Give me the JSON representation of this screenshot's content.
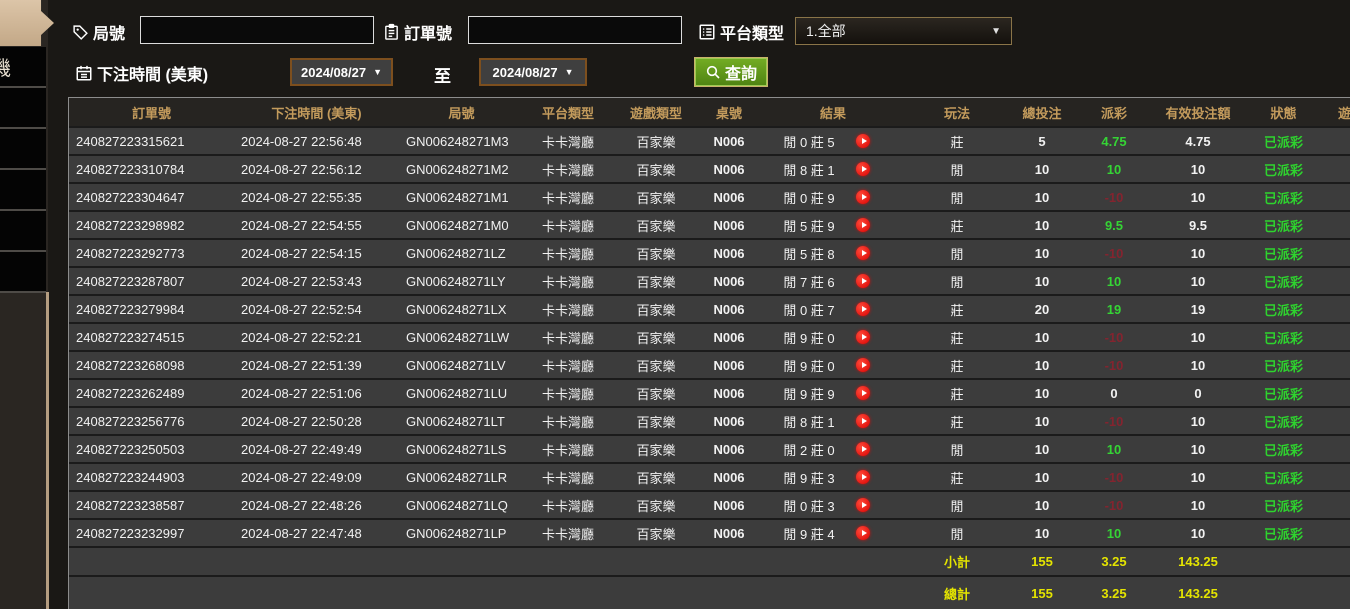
{
  "sidebar": {
    "items": [
      "機",
      "",
      "",
      "",
      "",
      ""
    ]
  },
  "filters": {
    "round_label": "局號",
    "round_value": "",
    "order_label": "訂單號",
    "order_value": "",
    "platform_label": "平台類型",
    "platform_value": "1.全部",
    "time_label": "下注時間 (美東)",
    "date_from": "2024/08/27",
    "to_label": "至",
    "date_to": "2024/08/27",
    "query_label": "查詢"
  },
  "table": {
    "headers": [
      "訂單號",
      "下注時間 (美東)",
      "局號",
      "平台類型",
      "遊戲類型",
      "桌號",
      "結果",
      "玩法",
      "總投注",
      "派彩",
      "有效投注額",
      "狀態",
      "遊戲"
    ],
    "rows": [
      {
        "order": "240827223315621",
        "time": "2024-08-27 22:56:48",
        "round": "GN006248271M3",
        "platform": "卡卡灣廳",
        "game": "百家樂",
        "table": "N006",
        "result": "閒 0 莊 5",
        "play": "莊",
        "bet": "5",
        "payout": "4.75",
        "valid": "4.75",
        "status": "已派彩"
      },
      {
        "order": "240827223310784",
        "time": "2024-08-27 22:56:12",
        "round": "GN006248271M2",
        "platform": "卡卡灣廳",
        "game": "百家樂",
        "table": "N006",
        "result": "閒 8 莊 1",
        "play": "閒",
        "bet": "10",
        "payout": "10",
        "valid": "10",
        "status": "已派彩"
      },
      {
        "order": "240827223304647",
        "time": "2024-08-27 22:55:35",
        "round": "GN006248271M1",
        "platform": "卡卡灣廳",
        "game": "百家樂",
        "table": "N006",
        "result": "閒 0 莊 9",
        "play": "閒",
        "bet": "10",
        "payout": "-10",
        "valid": "10",
        "status": "已派彩"
      },
      {
        "order": "240827223298982",
        "time": "2024-08-27 22:54:55",
        "round": "GN006248271M0",
        "platform": "卡卡灣廳",
        "game": "百家樂",
        "table": "N006",
        "result": "閒 5 莊 9",
        "play": "莊",
        "bet": "10",
        "payout": "9.5",
        "valid": "9.5",
        "status": "已派彩"
      },
      {
        "order": "240827223292773",
        "time": "2024-08-27 22:54:15",
        "round": "GN006248271LZ",
        "platform": "卡卡灣廳",
        "game": "百家樂",
        "table": "N006",
        "result": "閒 5 莊 8",
        "play": "閒",
        "bet": "10",
        "payout": "-10",
        "valid": "10",
        "status": "已派彩"
      },
      {
        "order": "240827223287807",
        "time": "2024-08-27 22:53:43",
        "round": "GN006248271LY",
        "platform": "卡卡灣廳",
        "game": "百家樂",
        "table": "N006",
        "result": "閒 7 莊 6",
        "play": "閒",
        "bet": "10",
        "payout": "10",
        "valid": "10",
        "status": "已派彩"
      },
      {
        "order": "240827223279984",
        "time": "2024-08-27 22:52:54",
        "round": "GN006248271LX",
        "platform": "卡卡灣廳",
        "game": "百家樂",
        "table": "N006",
        "result": "閒 0 莊 7",
        "play": "莊",
        "bet": "20",
        "payout": "19",
        "valid": "19",
        "status": "已派彩"
      },
      {
        "order": "240827223274515",
        "time": "2024-08-27 22:52:21",
        "round": "GN006248271LW",
        "platform": "卡卡灣廳",
        "game": "百家樂",
        "table": "N006",
        "result": "閒 9 莊 0",
        "play": "莊",
        "bet": "10",
        "payout": "-10",
        "valid": "10",
        "status": "已派彩"
      },
      {
        "order": "240827223268098",
        "time": "2024-08-27 22:51:39",
        "round": "GN006248271LV",
        "platform": "卡卡灣廳",
        "game": "百家樂",
        "table": "N006",
        "result": "閒 9 莊 0",
        "play": "莊",
        "bet": "10",
        "payout": "-10",
        "valid": "10",
        "status": "已派彩"
      },
      {
        "order": "240827223262489",
        "time": "2024-08-27 22:51:06",
        "round": "GN006248271LU",
        "platform": "卡卡灣廳",
        "game": "百家樂",
        "table": "N006",
        "result": "閒 9 莊 9",
        "play": "莊",
        "bet": "10",
        "payout": "0",
        "valid": "0",
        "status": "已派彩"
      },
      {
        "order": "240827223256776",
        "time": "2024-08-27 22:50:28",
        "round": "GN006248271LT",
        "platform": "卡卡灣廳",
        "game": "百家樂",
        "table": "N006",
        "result": "閒 8 莊 1",
        "play": "莊",
        "bet": "10",
        "payout": "-10",
        "valid": "10",
        "status": "已派彩"
      },
      {
        "order": "240827223250503",
        "time": "2024-08-27 22:49:49",
        "round": "GN006248271LS",
        "platform": "卡卡灣廳",
        "game": "百家樂",
        "table": "N006",
        "result": "閒 2 莊 0",
        "play": "閒",
        "bet": "10",
        "payout": "10",
        "valid": "10",
        "status": "已派彩"
      },
      {
        "order": "240827223244903",
        "time": "2024-08-27 22:49:09",
        "round": "GN006248271LR",
        "platform": "卡卡灣廳",
        "game": "百家樂",
        "table": "N006",
        "result": "閒 9 莊 3",
        "play": "莊",
        "bet": "10",
        "payout": "-10",
        "valid": "10",
        "status": "已派彩"
      },
      {
        "order": "240827223238587",
        "time": "2024-08-27 22:48:26",
        "round": "GN006248271LQ",
        "platform": "卡卡灣廳",
        "game": "百家樂",
        "table": "N006",
        "result": "閒 0 莊 3",
        "play": "閒",
        "bet": "10",
        "payout": "-10",
        "valid": "10",
        "status": "已派彩"
      },
      {
        "order": "240827223232997",
        "time": "2024-08-27 22:47:48",
        "round": "GN006248271LP",
        "platform": "卡卡灣廳",
        "game": "百家樂",
        "table": "N006",
        "result": "閒 9 莊 4",
        "play": "閒",
        "bet": "10",
        "payout": "10",
        "valid": "10",
        "status": "已派彩"
      }
    ],
    "subtotal": {
      "label": "小計",
      "bet": "155",
      "payout": "3.25",
      "valid": "143.25"
    },
    "total": {
      "label": "總計",
      "bet": "155",
      "payout": "3.25",
      "valid": "143.25"
    }
  },
  "colors": {
    "accent_gold": "#c39b5c",
    "status_green": "#2ed32e",
    "payout_pos": "#35d435",
    "payout_neg": "#84242f",
    "footer_yellow": "#e4e400",
    "query_green": "#5e9a18",
    "sidebar_tan": "#c9ae8e",
    "date_border": "#7d4f1e",
    "row_bg": "#3c3c3c",
    "play_red": "#d90000"
  }
}
